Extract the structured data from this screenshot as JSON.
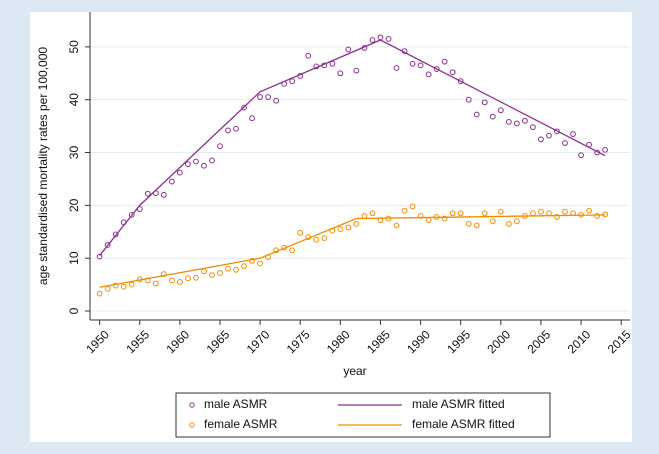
{
  "chart_data": {
    "type": "line",
    "y_label": "age standardised mortality rates per 100,000",
    "x_label": "year",
    "xlim": [
      1948.8,
      2016.1
    ],
    "ylim": [
      -1.7,
      56.6
    ],
    "xticks": [
      1950,
      1955,
      1960,
      1965,
      1970,
      1975,
      1980,
      1985,
      1990,
      1995,
      2000,
      2005,
      2010,
      2015
    ],
    "yticks": [
      0,
      10,
      20,
      30,
      40,
      50
    ],
    "grid": true,
    "legend": "bottom",
    "series": [
      {
        "name": "male ASMR",
        "type": "scatter",
        "color": "#8a2f8f",
        "x": [
          1950,
          1951,
          1952,
          1953,
          1954,
          1955,
          1956,
          1957,
          1958,
          1959,
          1960,
          1961,
          1962,
          1963,
          1964,
          1965,
          1966,
          1967,
          1968,
          1969,
          1970,
          1971,
          1972,
          1973,
          1974,
          1975,
          1976,
          1977,
          1978,
          1979,
          1980,
          1981,
          1982,
          1983,
          1984,
          1985,
          1986,
          1987,
          1988,
          1989,
          1990,
          1991,
          1992,
          1993,
          1994,
          1995,
          1996,
          1997,
          1998,
          1999,
          2000,
          2001,
          2002,
          2003,
          2004,
          2005,
          2006,
          2007,
          2008,
          2009,
          2010,
          2011,
          2012,
          2013
        ],
        "values": [
          10.3,
          12.5,
          14.5,
          16.8,
          18.2,
          19.3,
          22.2,
          22.3,
          22.0,
          24.5,
          26.2,
          27.8,
          28.3,
          27.5,
          28.5,
          31.2,
          34.2,
          34.5,
          38.5,
          36.5,
          40.5,
          40.5,
          39.8,
          43.0,
          43.5,
          44.5,
          48.3,
          46.3,
          46.5,
          46.8,
          45.0,
          49.5,
          45.5,
          49.8,
          51.3,
          51.8,
          51.5,
          46.0,
          49.2,
          46.8,
          46.5,
          44.8,
          45.8,
          47.2,
          45.2,
          43.5,
          40.0,
          37.2,
          39.5,
          36.8,
          38.0,
          35.8,
          35.5,
          36.0,
          34.8,
          32.5,
          33.2,
          34.0,
          31.8,
          33.5,
          29.5,
          31.5,
          30.0,
          30.5
        ]
      },
      {
        "name": "male ASMR fitted",
        "type": "line",
        "color": "#8a2f8f",
        "x": [
          1950,
          1955,
          1970,
          1985,
          2013
        ],
        "values": [
          10.5,
          20.0,
          41.5,
          51.3,
          29.4
        ]
      },
      {
        "name": "female ASMR",
        "type": "scatter",
        "color": "#f28c00",
        "x": [
          1950,
          1951,
          1952,
          1953,
          1954,
          1955,
          1956,
          1957,
          1958,
          1959,
          1960,
          1961,
          1962,
          1963,
          1964,
          1965,
          1966,
          1967,
          1968,
          1969,
          1970,
          1971,
          1972,
          1973,
          1974,
          1975,
          1976,
          1977,
          1978,
          1979,
          1980,
          1981,
          1982,
          1983,
          1984,
          1985,
          1986,
          1987,
          1988,
          1989,
          1990,
          1991,
          1992,
          1993,
          1994,
          1995,
          1996,
          1997,
          1998,
          1999,
          2000,
          2001,
          2002,
          2003,
          2004,
          2005,
          2006,
          2007,
          2008,
          2009,
          2010,
          2011,
          2012,
          2013
        ],
        "values": [
          3.3,
          4.2,
          4.8,
          4.6,
          5.0,
          6.0,
          5.8,
          5.2,
          7.0,
          5.8,
          5.5,
          6.2,
          6.3,
          7.5,
          6.8,
          7.2,
          8.0,
          7.8,
          8.5,
          9.5,
          9.0,
          10.2,
          11.5,
          12.0,
          11.5,
          14.8,
          14.0,
          13.5,
          13.8,
          15.2,
          15.5,
          15.8,
          16.5,
          18.0,
          18.5,
          17.2,
          17.5,
          16.2,
          19.0,
          19.8,
          18.0,
          17.2,
          17.8,
          17.5,
          18.5,
          18.5,
          16.5,
          16.2,
          18.5,
          17.0,
          18.8,
          16.5,
          17.0,
          18.0,
          18.5,
          18.8,
          18.5,
          17.8,
          18.8,
          18.5,
          18.2,
          19.0,
          18.0,
          18.3
        ]
      },
      {
        "name": "female ASMR fitted",
        "type": "line",
        "color": "#f28c00",
        "x": [
          1950,
          1970,
          1982,
          2013
        ],
        "values": [
          4.5,
          10.0,
          17.5,
          18.2
        ]
      }
    ]
  }
}
